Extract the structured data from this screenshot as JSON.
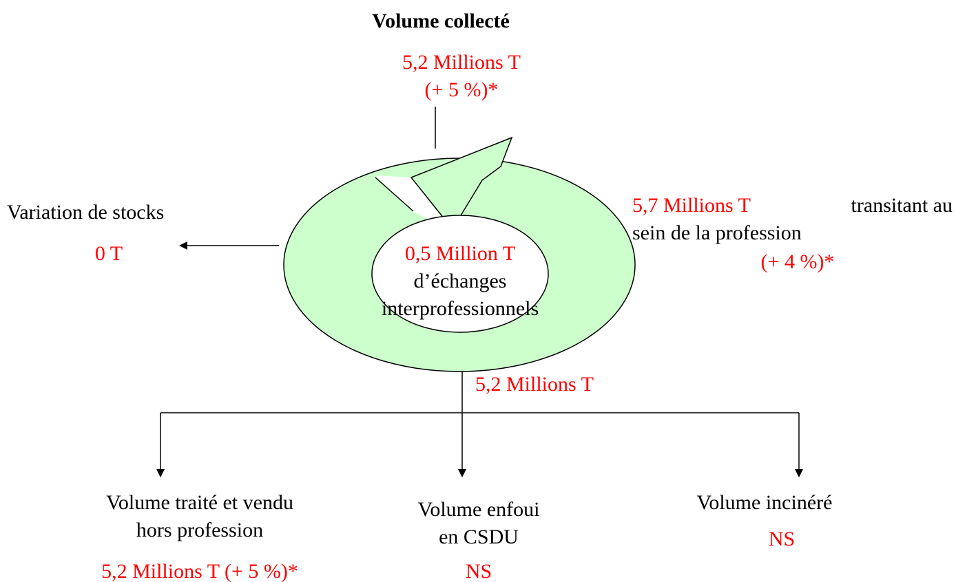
{
  "top": {
    "title": "Volume collecté",
    "value": "5,2 Millions T",
    "change": "(+ 5 %)*"
  },
  "stocks": {
    "label": "Variation de stocks",
    "value": "0 T"
  },
  "center": {
    "value": "0,5 Million T",
    "line1": "d’échanges",
    "line2": "interprofessionnels"
  },
  "transit": {
    "value": "5,7 Millions T",
    "text1": "transitant au",
    "text2": "sein de la profession",
    "change": "(+ 4 %)*"
  },
  "output": "5,2 Millions T",
  "destinations": [
    {
      "lines": [
        "Volume traité et vendu",
        "hors profession"
      ],
      "value": "5,2 Millions T (+ 5 %)*"
    },
    {
      "lines": [
        "Volume enfoui",
        "en CSDU"
      ],
      "value": "NS"
    },
    {
      "lines": [
        "Volume incinéré"
      ],
      "value": "NS"
    }
  ]
}
